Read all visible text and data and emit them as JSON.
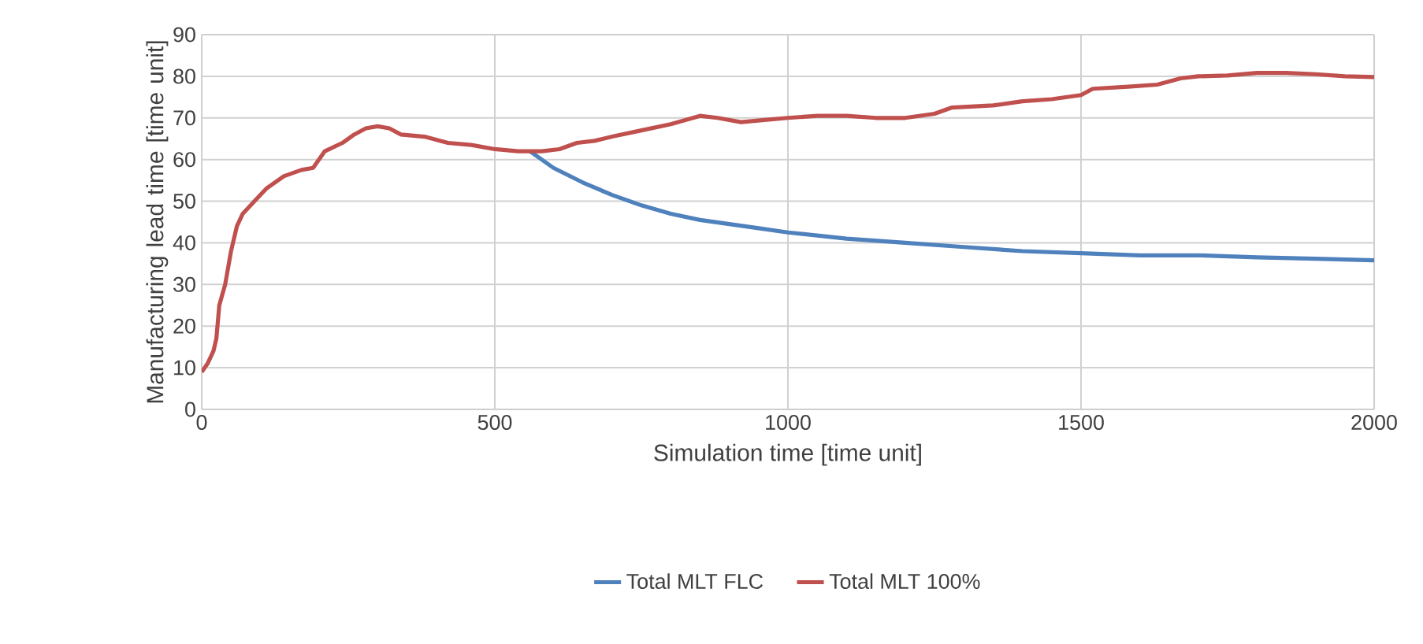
{
  "chart_data": {
    "type": "line",
    "xlabel": "Simulation time [time unit]",
    "ylabel": "Manufacturing lead time [time unit]",
    "xlim": [
      0,
      2000
    ],
    "ylim": [
      0,
      90
    ],
    "xticks": [
      0,
      500,
      1000,
      1500,
      2000
    ],
    "yticks": [
      0,
      10,
      20,
      30,
      40,
      50,
      60,
      70,
      80,
      90
    ],
    "grid": true,
    "legend": "bottom",
    "series": [
      {
        "name": "Total MLT FLC",
        "color": "#4f81bd",
        "x": [
          560,
          600,
          650,
          700,
          750,
          800,
          850,
          900,
          950,
          1000,
          1100,
          1200,
          1300,
          1400,
          1500,
          1600,
          1700,
          1800,
          1900,
          2000
        ],
        "values": [
          62,
          58,
          54.5,
          51.5,
          49,
          47,
          45.5,
          44.5,
          43.5,
          42.5,
          41,
          40,
          39,
          38,
          37.5,
          37,
          37,
          36.5,
          36.2,
          35.8
        ]
      },
      {
        "name": "Total MLT 100%",
        "color": "#c0504d",
        "x": [
          0,
          10,
          20,
          25,
          30,
          40,
          50,
          60,
          70,
          90,
          110,
          140,
          170,
          190,
          210,
          240,
          260,
          280,
          300,
          320,
          340,
          380,
          420,
          460,
          500,
          540,
          580,
          610,
          640,
          670,
          700,
          750,
          800,
          850,
          880,
          920,
          960,
          1000,
          1050,
          1100,
          1150,
          1200,
          1250,
          1280,
          1350,
          1400,
          1450,
          1500,
          1520,
          1580,
          1630,
          1670,
          1700,
          1750,
          1800,
          1850,
          1900,
          1950,
          2000
        ],
        "values": [
          9,
          11,
          14,
          17,
          25,
          30,
          38,
          44,
          47,
          50,
          53,
          56,
          57.5,
          58,
          62,
          64,
          66,
          67.5,
          68,
          67.5,
          66,
          65.5,
          64,
          63.5,
          62.5,
          62,
          62,
          62.5,
          64,
          64.5,
          65.5,
          67,
          68.5,
          70.5,
          70,
          69,
          69.5,
          70,
          70.5,
          70.5,
          70,
          70,
          71,
          72.5,
          73,
          74,
          74.5,
          75.5,
          77,
          77.5,
          78,
          79.5,
          80,
          80.2,
          80.8,
          80.8,
          80.5,
          80,
          79.8
        ]
      }
    ]
  }
}
